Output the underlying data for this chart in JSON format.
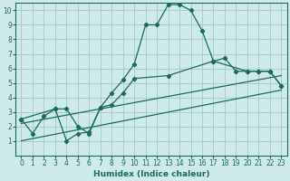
{
  "bg_color": "#ceeaea",
  "grid_color": "#aacccc",
  "line_color": "#1a6b5a",
  "xlabel": "Humidex (Indice chaleur)",
  "xlim": [
    -0.5,
    23.5
  ],
  "ylim": [
    0,
    10.5
  ],
  "xticks": [
    0,
    1,
    2,
    3,
    4,
    5,
    6,
    7,
    8,
    9,
    10,
    11,
    12,
    13,
    14,
    15,
    16,
    17,
    18,
    19,
    20,
    21,
    22,
    23
  ],
  "yticks": [
    1,
    2,
    3,
    4,
    5,
    6,
    7,
    8,
    9,
    10
  ],
  "curve1_x": [
    0,
    1,
    2,
    3,
    4,
    5,
    6,
    7,
    8,
    9,
    10,
    11,
    12,
    13,
    14,
    15,
    16,
    17,
    18,
    19,
    20,
    21,
    22,
    23
  ],
  "curve1_y": [
    2.5,
    1.5,
    2.7,
    3.2,
    3.2,
    2.0,
    1.5,
    3.3,
    4.3,
    5.2,
    6.3,
    9.0,
    9.0,
    10.4,
    10.4,
    10.0,
    8.6,
    6.5,
    6.7,
    5.8,
    5.8,
    5.8,
    5.8,
    4.8
  ],
  "curve2_x": [
    0,
    3,
    4,
    5,
    6,
    7,
    8,
    9,
    10,
    13,
    17,
    20,
    21,
    22,
    23
  ],
  "curve2_y": [
    2.5,
    3.2,
    1.0,
    1.5,
    1.6,
    3.3,
    3.5,
    4.3,
    5.3,
    5.5,
    6.5,
    5.8,
    5.8,
    5.8,
    4.8
  ],
  "curve3_x": [
    0,
    23
  ],
  "curve3_y": [
    1.0,
    4.5
  ],
  "curve4_x": [
    0,
    23
  ],
  "curve4_y": [
    2.2,
    5.5
  ]
}
